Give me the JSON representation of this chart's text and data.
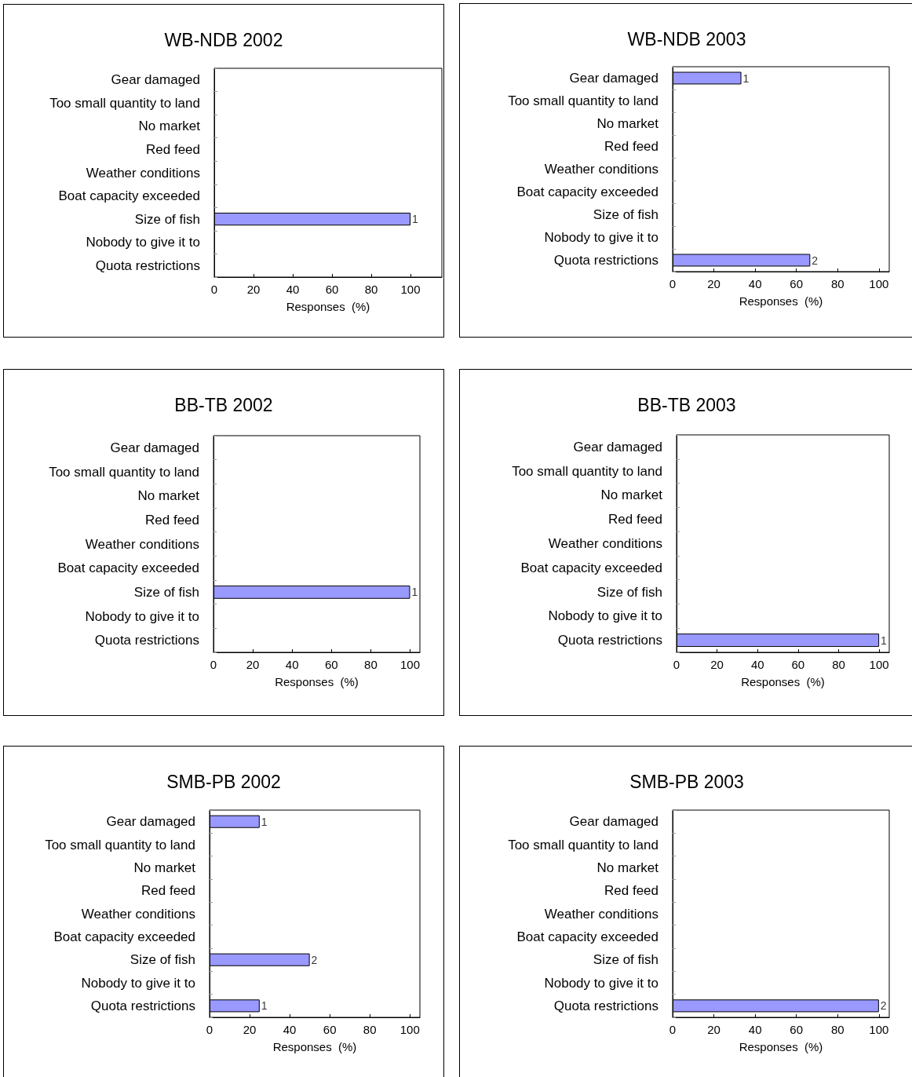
{
  "chart_data": [
    {
      "type": "bar",
      "orientation": "horizontal",
      "title": "WB-NDB 2002",
      "xlabel": "Responses  (%)",
      "categories": [
        "Gear damaged",
        "Too small quantity to land",
        "No market",
        "Red feed",
        "Weather conditions",
        "Boat capacity exceeded",
        "Size of fish",
        "Nobody to give it to",
        "Quota restrictions"
      ],
      "values": [
        0,
        0,
        0,
        0,
        0,
        0,
        100,
        0,
        0
      ],
      "annotations": [
        {
          "text": "1",
          "x": 100,
          "y": "Size of fish"
        }
      ],
      "color": "#9999ff",
      "xlim": [
        0,
        116
      ],
      "xticks": [
        0,
        20,
        40,
        60,
        80,
        100
      ],
      "grid": false
    },
    {
      "type": "bar",
      "orientation": "horizontal",
      "title": "WB-NDB 2003",
      "xlabel": "Responses  (%)",
      "categories": [
        "Gear damaged",
        "Too small quantity to land",
        "No market",
        "Red feed",
        "Weather conditions",
        "Boat capacity exceeded",
        "Size of fish",
        "Nobody to give it to",
        "Quota restrictions"
      ],
      "values": [
        33.3,
        0,
        0,
        0,
        0,
        0,
        0,
        0,
        66.7
      ],
      "annotations": [
        {
          "text": "1",
          "x": 33.3,
          "y": "Gear damaged"
        },
        {
          "text": "2",
          "x": 66.7,
          "y": "Quota restrictions"
        }
      ],
      "color": "#9999ff",
      "xlim": [
        0,
        105
      ],
      "xticks": [
        0,
        20,
        40,
        60,
        80,
        100
      ],
      "grid": false
    },
    {
      "type": "bar",
      "orientation": "horizontal",
      "title": "BB-TB 2002",
      "xlabel": "Responses  (%)",
      "categories": [
        "Gear damaged",
        "Too small quantity to land",
        "No market",
        "Red feed",
        "Weather conditions",
        "Boat capacity exceeded",
        "Size of fish",
        "Nobody to give it to",
        "Quota restrictions"
      ],
      "values": [
        0,
        0,
        0,
        0,
        0,
        0,
        100,
        0,
        0
      ],
      "annotations": [
        {
          "text": "1",
          "x": 100,
          "y": "Size of fish"
        }
      ],
      "color": "#9999ff",
      "xlim": [
        0,
        105
      ],
      "xticks": [
        0,
        20,
        40,
        60,
        80,
        100
      ],
      "grid": false
    },
    {
      "type": "bar",
      "orientation": "horizontal",
      "title": "BB-TB 2003",
      "xlabel": "Responses  (%)",
      "categories": [
        "Gear damaged",
        "Too small quantity to land",
        "No market",
        "Red feed",
        "Weather conditions",
        "Boat capacity exceeded",
        "Size of fish",
        "Nobody to give it to",
        "Quota restrictions"
      ],
      "values": [
        0,
        0,
        0,
        0,
        0,
        0,
        0,
        0,
        100
      ],
      "annotations": [
        {
          "text": "1",
          "x": 100,
          "y": "Quota restrictions"
        }
      ],
      "color": "#9999ff",
      "xlim": [
        0,
        105
      ],
      "xticks": [
        0,
        20,
        40,
        60,
        80,
        100
      ],
      "grid": false
    },
    {
      "type": "bar",
      "orientation": "horizontal",
      "title": "SMB-PB 2002",
      "xlabel": "Responses  (%)",
      "categories": [
        "Gear damaged",
        "Too small quantity to land",
        "No market",
        "Red feed",
        "Weather conditions",
        "Boat capacity exceeded",
        "Size of fish",
        "Nobody to give it to",
        "Quota restrictions"
      ],
      "values": [
        25,
        0,
        0,
        0,
        0,
        0,
        50,
        0,
        25
      ],
      "annotations": [
        {
          "text": "1",
          "x": 25,
          "y": "Gear damaged"
        },
        {
          "text": "2",
          "x": 50,
          "y": "Size of fish"
        },
        {
          "text": "1",
          "x": 25,
          "y": "Quota restrictions"
        }
      ],
      "color": "#9999ff",
      "xlim": [
        0,
        105
      ],
      "xticks": [
        0,
        20,
        40,
        60,
        80,
        100
      ],
      "grid": false
    },
    {
      "type": "bar",
      "orientation": "horizontal",
      "title": "SMB-PB 2003",
      "xlabel": "Responses  (%)",
      "categories": [
        "Gear damaged",
        "Too small quantity to land",
        "No market",
        "Red feed",
        "Weather conditions",
        "Boat capacity exceeded",
        "Size of fish",
        "Nobody to give it to",
        "Quota restrictions"
      ],
      "values": [
        0,
        0,
        0,
        0,
        0,
        0,
        0,
        0,
        100
      ],
      "annotations": [
        {
          "text": "2",
          "x": 100,
          "y": "Quota restrictions"
        }
      ],
      "color": "#9999ff",
      "xlim": [
        0,
        105
      ],
      "xticks": [
        0,
        20,
        40,
        60,
        80,
        100
      ],
      "grid": false
    }
  ]
}
